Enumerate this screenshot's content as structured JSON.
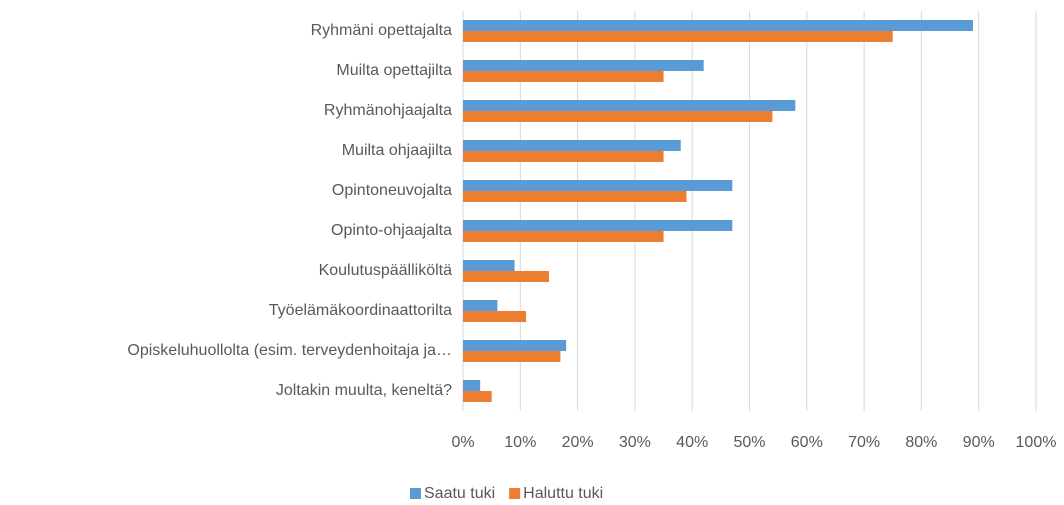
{
  "chart_data": {
    "type": "hbar",
    "categories": [
      "Ryhmäni opettajalta",
      "Muilta opettajilta",
      "Ryhmänohjaajalta",
      "Muilta ohjaajilta",
      "Opintoneuvojalta",
      "Opinto-ohjaajalta",
      "Koulutuspäälliköltä",
      "Työelämäkoordinaattorilta",
      "Opiskeluhuollolta (esim. terveydenhoitaja ja…",
      "Joltakin muulta, keneltä?"
    ],
    "series": [
      {
        "name": "Saatu tuki",
        "color": "#5b9bd5",
        "values": [
          89,
          42,
          58,
          38,
          47,
          47,
          9,
          6,
          18,
          3
        ]
      },
      {
        "name": "Haluttu tuki",
        "color": "#ed7d31",
        "values": [
          75,
          35,
          54,
          35,
          39,
          35,
          15,
          11,
          17,
          5
        ]
      }
    ],
    "xlim": [
      0,
      100
    ],
    "xticks": [
      {
        "value": 0,
        "label": "0%"
      },
      {
        "value": 10,
        "label": "10%"
      },
      {
        "value": 20,
        "label": "20%"
      },
      {
        "value": 30,
        "label": "30%"
      },
      {
        "value": 40,
        "label": "40%"
      },
      {
        "value": 50,
        "label": "50%"
      },
      {
        "value": 60,
        "label": "60%"
      },
      {
        "value": 70,
        "label": "70%"
      },
      {
        "value": 80,
        "label": "80%"
      },
      {
        "value": 90,
        "label": "90%"
      },
      {
        "value": 100,
        "label": "100%"
      }
    ],
    "grid": true,
    "legend": "bottom"
  }
}
